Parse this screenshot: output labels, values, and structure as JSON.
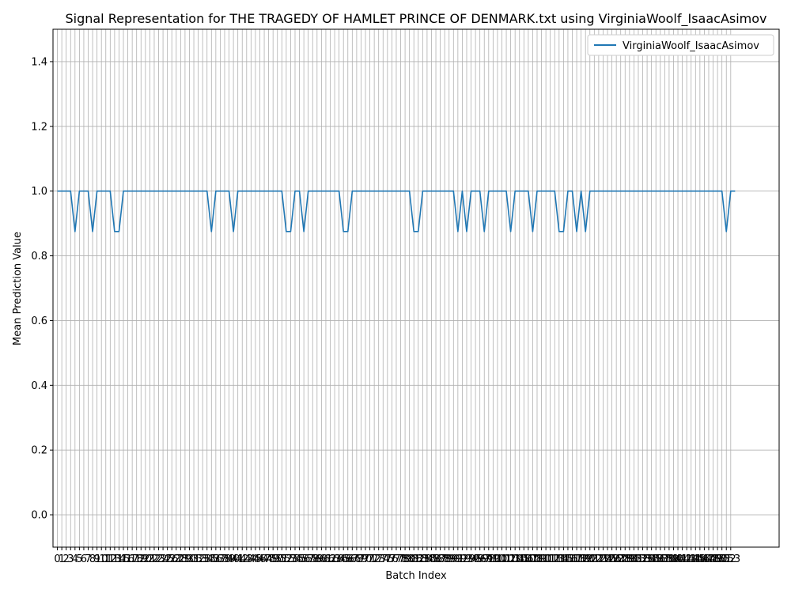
{
  "chart_data": {
    "type": "line",
    "title": "Signal Representation for THE TRAGEDY OF HAMLET PRINCE OF DENMARK.txt using VirginiaWoolf_IsaacAsimov",
    "xlabel": "Batch Index",
    "ylabel": "Mean Prediction Value",
    "xlim": [
      -1,
      164
    ],
    "ylim": [
      -0.1,
      1.5
    ],
    "yticks": [
      0.0,
      0.2,
      0.4,
      0.6,
      0.8,
      1.0,
      1.2,
      1.4
    ],
    "ytick_labels": [
      "0.0",
      "0.2",
      "0.4",
      "0.6",
      "0.8",
      "1.0",
      "1.2",
      "1.4"
    ],
    "xticks_from": 0,
    "xticks_to": 153,
    "grid": true,
    "legend_position": "top-right",
    "colors": {
      "series": "#1f77b4",
      "grid": "#b0b0b0"
    },
    "series": [
      {
        "name": "VirginiaWoolf_IsaacAsimov",
        "x_start": 0,
        "values": [
          1,
          1,
          1,
          1,
          0.875,
          1,
          1,
          1,
          0.875,
          1,
          1,
          1,
          1,
          0.875,
          0.875,
          1,
          1,
          1,
          1,
          1,
          1,
          1,
          1,
          1,
          1,
          1,
          1,
          1,
          1,
          1,
          1,
          1,
          1,
          1,
          1,
          0.875,
          1,
          1,
          1,
          1,
          0.875,
          1,
          1,
          1,
          1,
          1,
          1,
          1,
          1,
          1,
          1,
          1,
          0.875,
          0.875,
          1,
          1,
          0.875,
          1,
          1,
          1,
          1,
          1,
          1,
          1,
          1,
          0.875,
          0.875,
          1,
          1,
          1,
          1,
          1,
          1,
          1,
          1,
          1,
          1,
          1,
          1,
          1,
          1,
          0.875,
          0.875,
          1,
          1,
          1,
          1,
          1,
          1,
          1,
          1,
          0.875,
          1,
          0.875,
          1,
          1,
          1,
          0.875,
          1,
          1,
          1,
          1,
          1,
          0.875,
          1,
          1,
          1,
          1,
          0.875,
          1,
          1,
          1,
          1,
          1,
          0.875,
          0.875,
          1,
          1,
          0.875,
          1,
          0.875,
          1,
          1,
          1,
          1,
          1,
          1,
          1,
          1,
          1,
          1,
          1,
          1,
          1,
          1,
          1,
          1,
          1,
          1,
          1,
          1,
          1,
          1,
          1,
          1,
          1,
          1,
          1,
          1,
          1,
          1,
          1,
          0.875,
          1,
          1
        ]
      }
    ]
  }
}
